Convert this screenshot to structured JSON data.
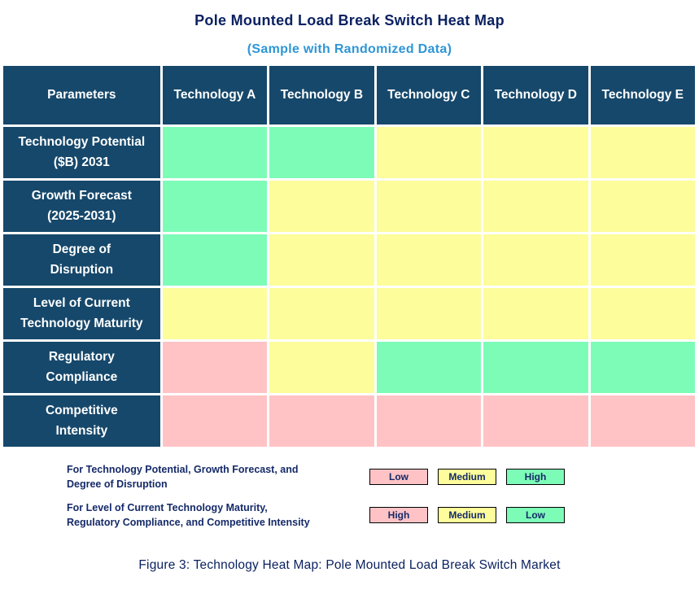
{
  "title": "Pole Mounted Load Break Switch Heat Map",
  "subtitle": "(Sample with Randomized Data)",
  "caption": "Figure 3: Technology Heat Map: Pole Mounted Load Break Switch Market",
  "colors": {
    "header_bg": "#16486b",
    "header_text": "#ffffff",
    "title_text": "#0b2161",
    "subtitle_text": "#2e96d5",
    "body_text": "#152a68",
    "low": "#ffc3c6",
    "medium": "#fdfd9b",
    "high": "#7dfcb8"
  },
  "table": {
    "columns": [
      "Parameters",
      "Technology A",
      "Technology B",
      "Technology C",
      "Technology D",
      "Technology E"
    ],
    "rows": [
      {
        "label_lines": [
          "Technology Potential",
          "($B) 2031"
        ],
        "cells": [
          "high",
          "high",
          "medium",
          "medium",
          "medium"
        ]
      },
      {
        "label_lines": [
          "Growth Forecast",
          "(2025-2031)"
        ],
        "cells": [
          "high",
          "medium",
          "medium",
          "medium",
          "medium"
        ]
      },
      {
        "label_lines": [
          "Degree of",
          "Disruption"
        ],
        "cells": [
          "high",
          "medium",
          "medium",
          "medium",
          "medium"
        ]
      },
      {
        "label_lines": [
          "Level of Current",
          "Technology Maturity"
        ],
        "cells": [
          "medium",
          "medium",
          "medium",
          "medium",
          "medium"
        ]
      },
      {
        "label_lines": [
          "Regulatory",
          "Compliance"
        ],
        "cells": [
          "low",
          "medium",
          "high",
          "high",
          "high"
        ]
      },
      {
        "label_lines": [
          "Competitive",
          "Intensity"
        ],
        "cells": [
          "low",
          "low",
          "low",
          "low",
          "low"
        ]
      }
    ]
  },
  "legend": {
    "groups": [
      {
        "text_lines": [
          "For Technology Potential, Growth Forecast, and",
          "Degree of Disruption"
        ],
        "items": [
          {
            "label": "Low",
            "color": "low"
          },
          {
            "label": "Medium",
            "color": "medium"
          },
          {
            "label": "High",
            "color": "high"
          }
        ]
      },
      {
        "text_lines": [
          "For Level of Current Technology Maturity,",
          "Regulatory Compliance, and Competitive Intensity"
        ],
        "items": [
          {
            "label": "High",
            "color": "low"
          },
          {
            "label": "Medium",
            "color": "medium"
          },
          {
            "label": "Low",
            "color": "high"
          }
        ]
      }
    ]
  },
  "chart_data": {
    "type": "heatmap",
    "title": "Pole Mounted Load Break Switch Heat Map",
    "subtitle": "(Sample with Randomized Data)",
    "caption": "Figure 3: Technology Heat Map: Pole Mounted Load Break Switch Market",
    "columns": [
      "Technology A",
      "Technology B",
      "Technology C",
      "Technology D",
      "Technology E"
    ],
    "rows": [
      "Technology Potential ($B) 2031",
      "Growth Forecast (2025-2031)",
      "Degree of Disruption",
      "Level of Current Technology Maturity",
      "Regulatory Compliance",
      "Competitive Intensity"
    ],
    "cell_colors": [
      [
        "green",
        "green",
        "yellow",
        "yellow",
        "yellow"
      ],
      [
        "green",
        "yellow",
        "yellow",
        "yellow",
        "yellow"
      ],
      [
        "green",
        "yellow",
        "yellow",
        "yellow",
        "yellow"
      ],
      [
        "yellow",
        "yellow",
        "yellow",
        "yellow",
        "yellow"
      ],
      [
        "pink",
        "yellow",
        "green",
        "green",
        "green"
      ],
      [
        "pink",
        "pink",
        "pink",
        "pink",
        "pink"
      ]
    ],
    "cell_values_semantic": [
      [
        "High",
        "High",
        "Medium",
        "Medium",
        "Medium"
      ],
      [
        "High",
        "Medium",
        "Medium",
        "Medium",
        "Medium"
      ],
      [
        "High",
        "Medium",
        "Medium",
        "Medium",
        "Medium"
      ],
      [
        "Medium",
        "Medium",
        "Medium",
        "Medium",
        "Medium"
      ],
      [
        "High",
        "Medium",
        "Low",
        "Low",
        "Low"
      ],
      [
        "High",
        "High",
        "High",
        "High",
        "High"
      ]
    ],
    "legend_note": "For rows 1-3 (Technology Potential, Growth Forecast, Degree of Disruption): pink=Low, yellow=Medium, green=High. For rows 4-6 (Technology Maturity, Regulatory Compliance, Competitive Intensity): pink=High, yellow=Medium, green=Low.",
    "legend_position": "below-table"
  }
}
